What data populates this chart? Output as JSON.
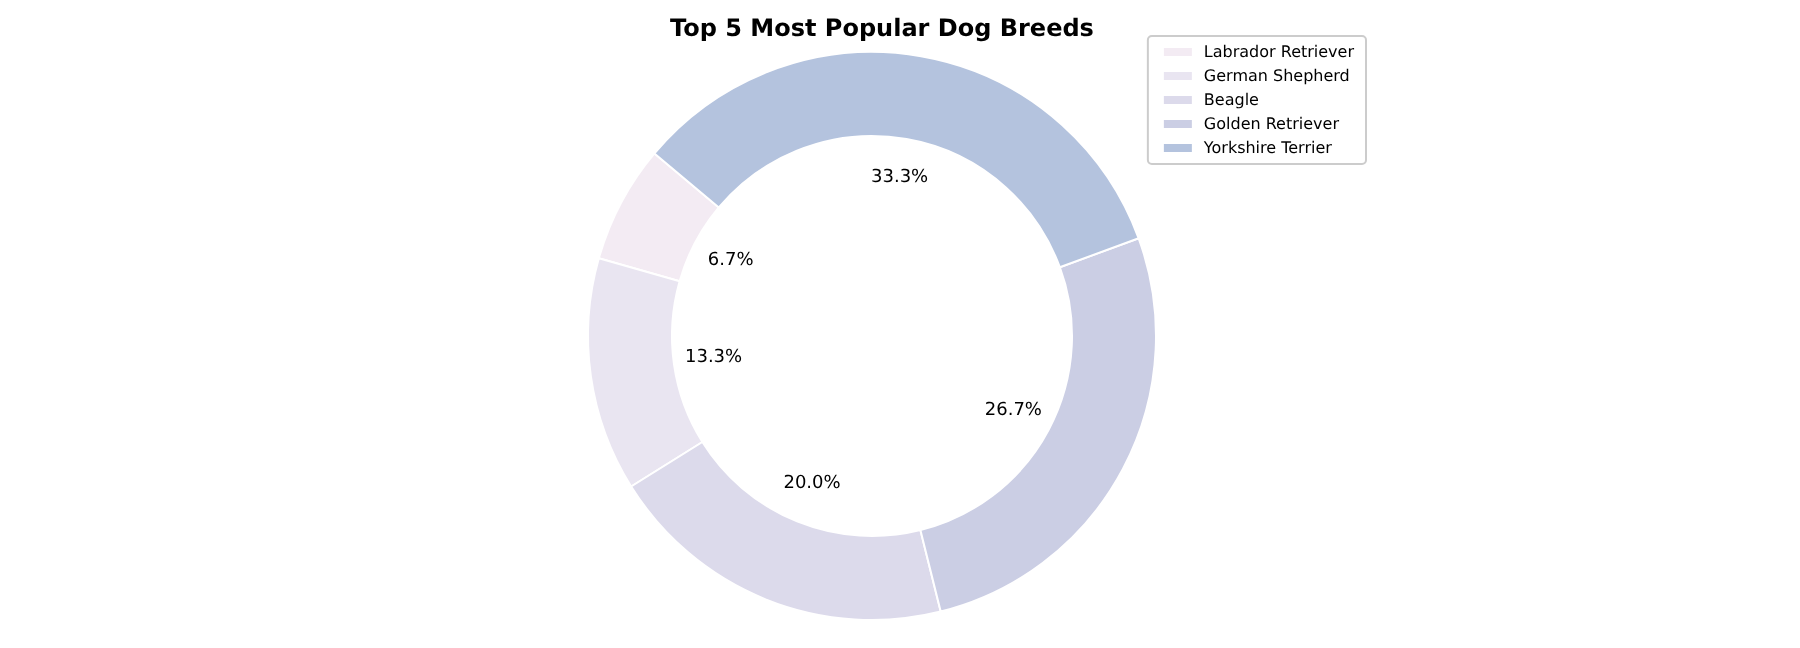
{
  "chart_data": {
    "type": "donut",
    "title": "Top 5 Most Popular Dog Breeds",
    "categories": [
      "Labrador Retriever",
      "German Shepherd",
      "Beagle",
      "Golden Retriever",
      "Yorkshire Terrier"
    ],
    "values": [
      6.7,
      13.3,
      20.0,
      26.7,
      33.3
    ],
    "colors": [
      "#f3ebf3",
      "#e9e5f1",
      "#dcdaeb",
      "#cbcee4",
      "#b4c3de"
    ],
    "value_labels": [
      "6.7%",
      "13.3%",
      "20.0%",
      "26.7%",
      "33.3%"
    ],
    "legend": "top right"
  }
}
